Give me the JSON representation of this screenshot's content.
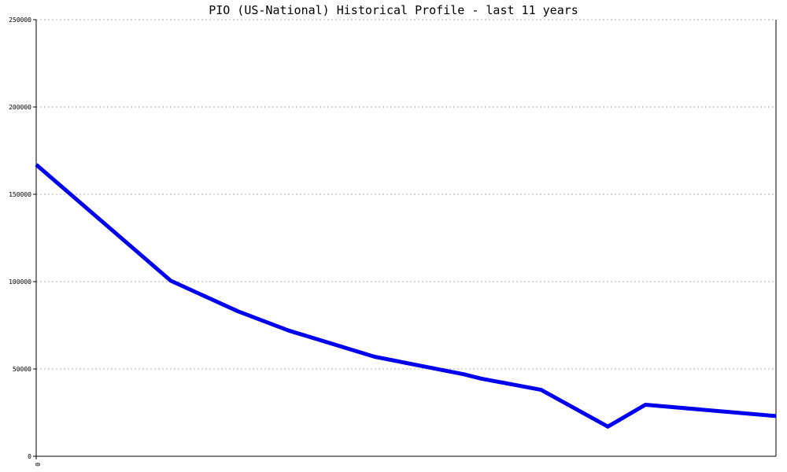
{
  "chart_data": {
    "type": "line",
    "title": "PIO (US-National) Historical Profile - last 11 years",
    "xlabel": "",
    "ylabel": "",
    "ylim": [
      0,
      250000
    ],
    "yticks": [
      0,
      50000,
      100000,
      150000,
      200000,
      250000
    ],
    "ytick_labels": [
      "0",
      "50000",
      "100000",
      "150000",
      "200000",
      "250000"
    ],
    "xticks": [
      0
    ],
    "xtick_labels": [
      "0"
    ],
    "xlim": [
      0,
      1
    ],
    "grid": true,
    "color": "#0000ee",
    "series": [
      {
        "x": [
          0,
          0.1819,
          0.2727,
          0.3413,
          0.4574,
          0.5777,
          0.601,
          0.6826,
          0.7728,
          0.8235,
          1.0
        ],
        "y": [
          167000,
          100500,
          83000,
          72000,
          57000,
          47000,
          44500,
          38000,
          17000,
          29500,
          23000
        ]
      }
    ]
  }
}
